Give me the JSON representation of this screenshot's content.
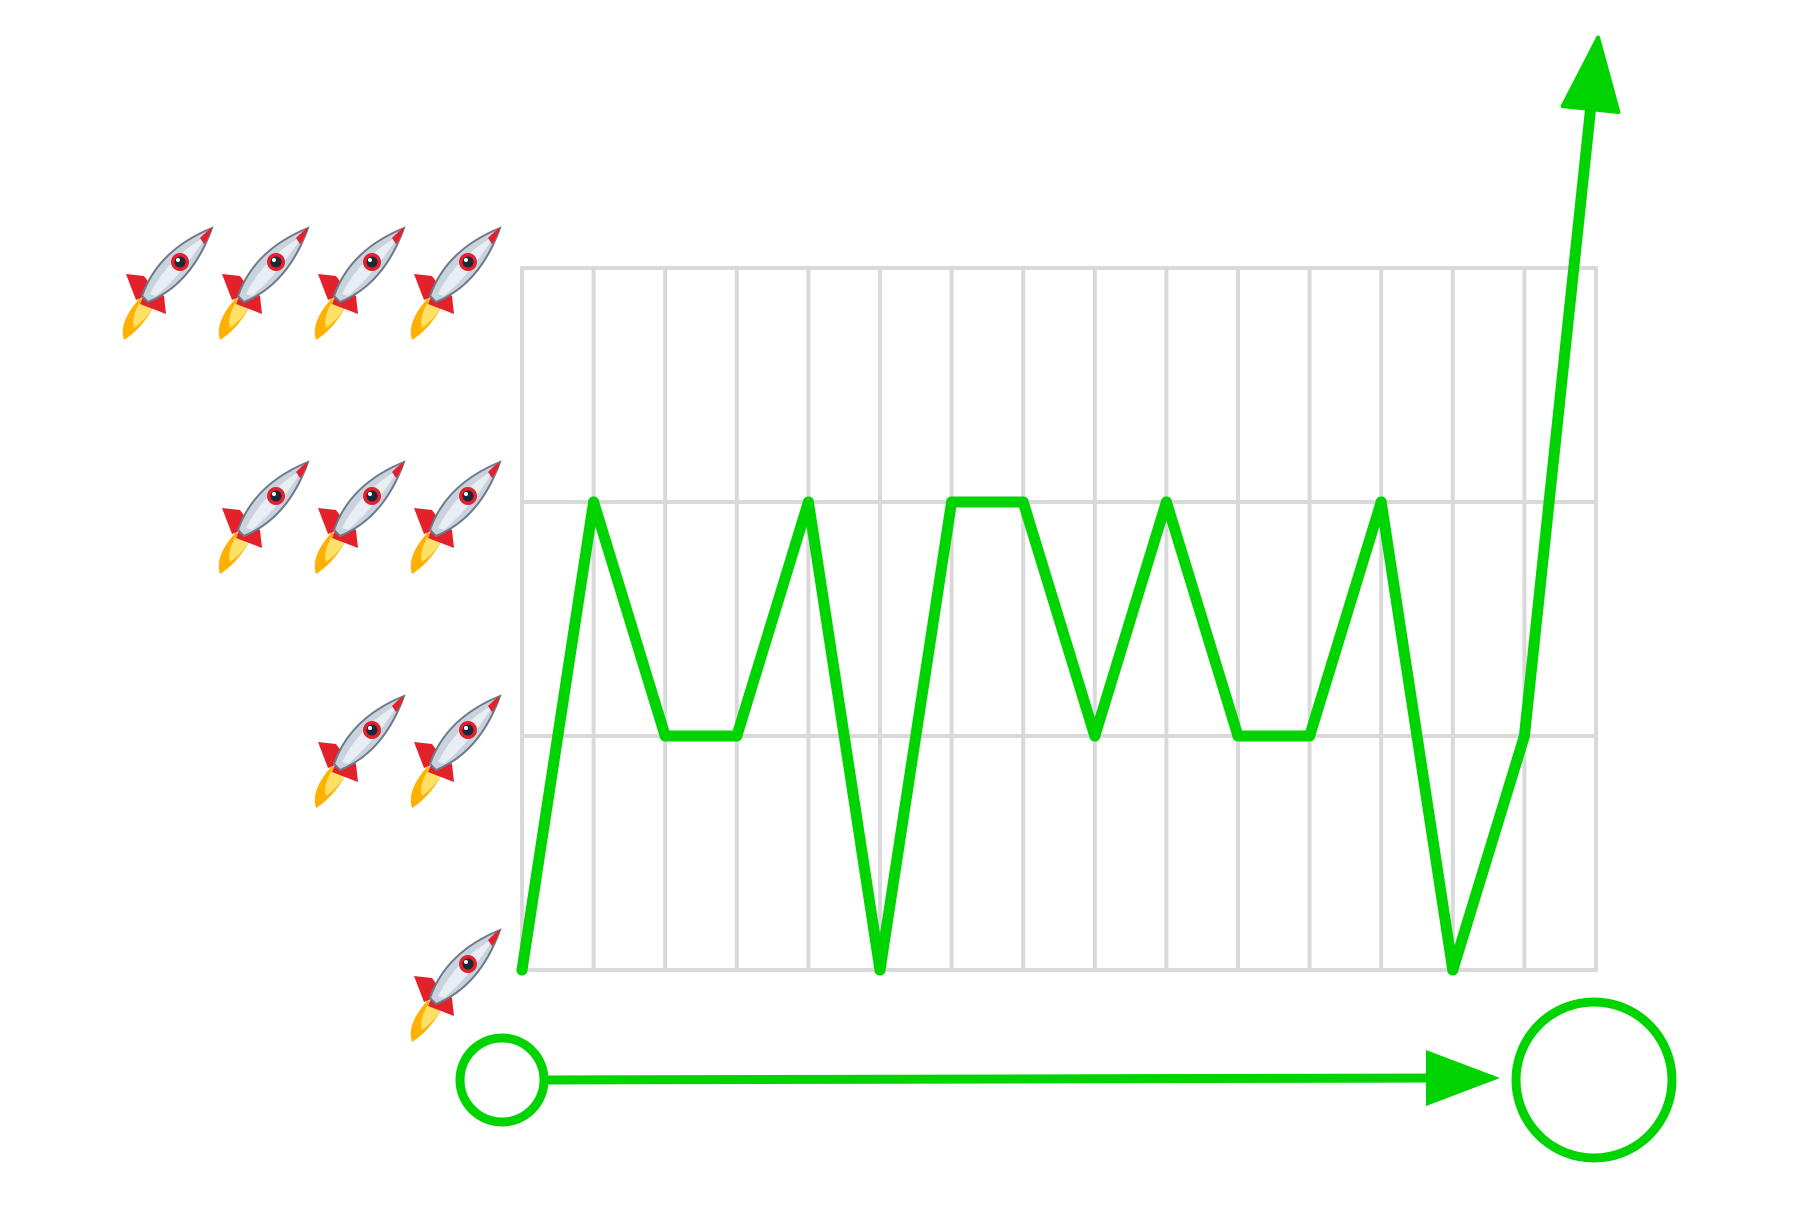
{
  "colors": {
    "line": "#00d400",
    "grid": "#d9d9d9",
    "background": "#ffffff"
  },
  "icons": {
    "y_axis_marker": "rocket-icon",
    "x_axis_start": "small-circle-icon",
    "x_axis_end": "large-circle-icon"
  },
  "chart_data": {
    "type": "line",
    "title": "",
    "xlabel": "",
    "ylabel": "",
    "x": [
      0,
      1,
      2,
      3,
      4,
      5,
      6,
      7,
      8,
      9,
      10,
      11,
      12,
      13,
      14,
      15
    ],
    "values": [
      1,
      3,
      2,
      2,
      3,
      1,
      3,
      3,
      2,
      3,
      2,
      2,
      3,
      1,
      2,
      4.9
    ],
    "xlim": [
      0,
      15
    ],
    "ylim": [
      1,
      4
    ],
    "y_ticks": [
      1,
      2,
      3,
      4
    ],
    "y_tick_icon_counts": [
      1,
      2,
      3,
      4
    ],
    "grid": true,
    "last_segment_arrow": true,
    "x_axis_arrow": true
  }
}
